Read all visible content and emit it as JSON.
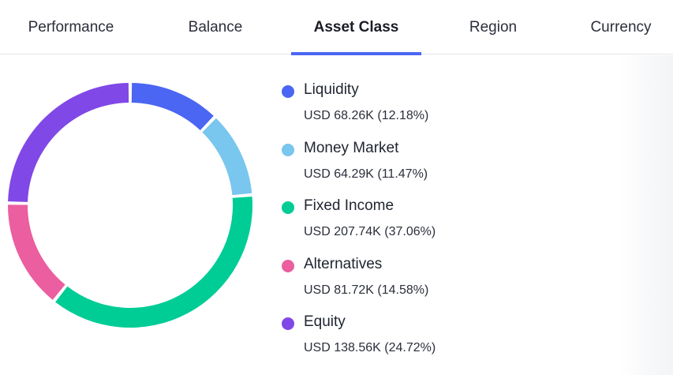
{
  "tabs": [
    {
      "label": "Performance",
      "active": false
    },
    {
      "label": "Balance",
      "active": false
    },
    {
      "label": "Asset Class",
      "active": true
    },
    {
      "label": "Region",
      "active": false
    },
    {
      "label": "Currency",
      "active": false
    }
  ],
  "chart_data": {
    "type": "pie",
    "variant": "donut",
    "categories": [
      "Liquidity",
      "Money Market",
      "Fixed Income",
      "Alternatives",
      "Equity"
    ],
    "values": [
      12.18,
      11.47,
      37.06,
      14.58,
      24.72
    ],
    "colors": [
      "#4a66f2",
      "#79c6ee",
      "#00cc96",
      "#eb5e9f",
      "#8048e6"
    ]
  },
  "legend": [
    {
      "name": "Liquidity",
      "value": "USD 68.26K (12.18%)",
      "color": "#4a66f2"
    },
    {
      "name": "Money Market",
      "value": "USD 64.29K (11.47%)",
      "color": "#79c6ee"
    },
    {
      "name": "Fixed Income",
      "value": "USD 207.74K (37.06%)",
      "color": "#00cc96"
    },
    {
      "name": "Alternatives",
      "value": "USD 81.72K (14.58%)",
      "color": "#eb5e9f"
    },
    {
      "name": "Equity",
      "value": "USD 138.56K (24.72%)",
      "color": "#8048e6"
    }
  ]
}
